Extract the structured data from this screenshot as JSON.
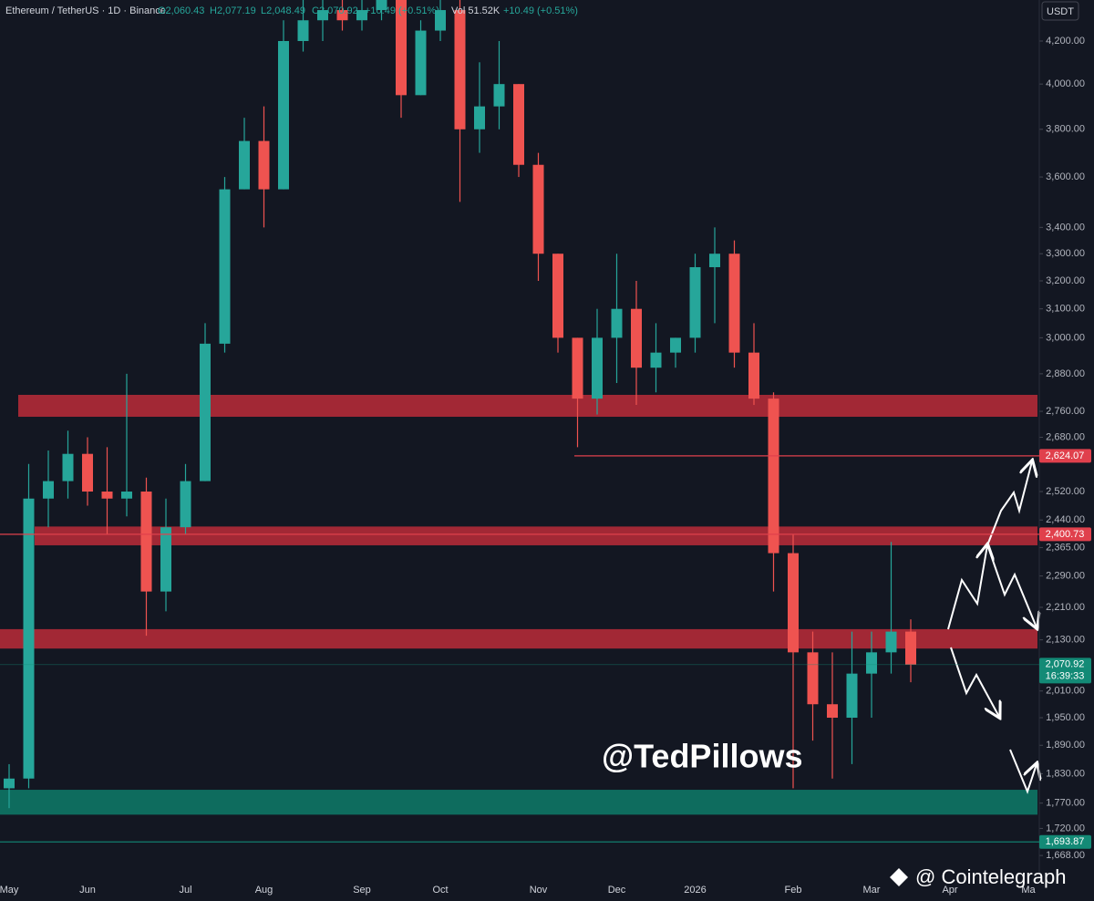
{
  "header": {
    "symbol": "Ethereum / TetherUS · 1D · Binance",
    "ohlc": [
      "O2,060.43",
      "H2,077.19",
      "L2,048.49",
      "C2,070.92"
    ],
    "change": "+10.49 (+0.51%)",
    "volume": "Vol 51.52K",
    "volume_change": "+10.49 (+0.51%)",
    "currency": "USDT"
  },
  "watermark": "@TedPillows",
  "source": "@ Cointelegraph",
  "chart_data": {
    "type": "candlestick",
    "log_scale": true,
    "grid": false,
    "up_color": "#26a69a",
    "down_color": "#ef5350",
    "categories": [
      "May",
      null,
      null,
      null,
      "Jun",
      null,
      null,
      null,
      null,
      "Jul",
      null,
      null,
      null,
      "Aug",
      null,
      null,
      null,
      null,
      "Sep",
      null,
      null,
      null,
      "Oct",
      null,
      null,
      null,
      null,
      "Nov",
      null,
      null,
      null,
      "Dec",
      null,
      null,
      null,
      "2026",
      null,
      null,
      null,
      null,
      "Feb",
      null,
      null,
      null,
      "Mar",
      null,
      null,
      null,
      "Apr",
      null,
      null,
      null,
      "Ma"
    ],
    "open": [
      1800,
      1820,
      2500,
      2550,
      2630,
      2520,
      2500,
      2520,
      2250,
      2420,
      2550,
      2980,
      3550,
      3750,
      3550,
      4200,
      4300,
      4350,
      4300,
      4350,
      4400,
      3950,
      4250,
      4350,
      3800,
      3900,
      4000,
      3650,
      3300,
      3000,
      2800,
      3000,
      3100,
      2900,
      2950,
      3000,
      3250,
      3300,
      2950,
      2800,
      2350,
      2100,
      1980,
      1950,
      2050,
      2100,
      2150,
      null,
      null,
      null,
      null,
      null,
      null
    ],
    "high": [
      1850,
      2600,
      2640,
      2700,
      2680,
      2650,
      2880,
      2560,
      2500,
      2600,
      3050,
      3600,
      3850,
      3900,
      4300,
      4400,
      4400,
      4400,
      4400,
      4400,
      4400,
      4300,
      4400,
      4400,
      4100,
      4200,
      4000,
      3700,
      3300,
      3000,
      3100,
      3300,
      3200,
      3050,
      3000,
      3300,
      3400,
      3350,
      3050,
      2820,
      2400,
      2150,
      2100,
      2150,
      2150,
      2380,
      2180,
      null,
      null,
      null,
      null,
      null,
      null
    ],
    "low": [
      1760,
      1800,
      2420,
      2500,
      2480,
      2400,
      2450,
      2140,
      2200,
      2400,
      2550,
      2950,
      3550,
      3400,
      3550,
      4150,
      4200,
      4250,
      4250,
      4300,
      3850,
      3950,
      4200,
      3500,
      3700,
      3800,
      3600,
      3200,
      2950,
      2650,
      2750,
      2850,
      2780,
      2820,
      2900,
      2950,
      3050,
      2900,
      2780,
      2250,
      1800,
      1900,
      1820,
      1850,
      1950,
      2050,
      2030,
      null,
      null,
      null,
      null,
      null,
      null
    ],
    "close": [
      1820,
      2500,
      2550,
      2630,
      2520,
      2500,
      2520,
      2250,
      2420,
      2550,
      2980,
      3550,
      3750,
      3550,
      4200,
      4300,
      4350,
      4300,
      4350,
      4400,
      3950,
      4250,
      4350,
      3800,
      3900,
      4000,
      3650,
      3300,
      3000,
      2800,
      3000,
      3100,
      2900,
      2950,
      3000,
      3250,
      3300,
      2950,
      2800,
      2350,
      2100,
      1980,
      1950,
      2050,
      2100,
      2150,
      2070.92,
      null,
      null,
      null,
      null,
      null,
      null
    ],
    "ylim": [
      1634,
      4400
    ],
    "yticks": [
      {
        "value": 4200,
        "label": "4,200.00"
      },
      {
        "value": 4000,
        "label": "4,000.00"
      },
      {
        "value": 3800,
        "label": "3,800.00"
      },
      {
        "value": 3600,
        "label": "3,600.00"
      },
      {
        "value": 3400,
        "label": "3,400.00"
      },
      {
        "value": 3300,
        "label": "3,300.00"
      },
      {
        "value": 3200,
        "label": "3,200.00"
      },
      {
        "value": 3100,
        "label": "3,100.00"
      },
      {
        "value": 3000,
        "label": "3,000.00"
      },
      {
        "value": 2880,
        "label": "2,880.00"
      },
      {
        "value": 2760,
        "label": "2,760.00"
      },
      {
        "value": 2680,
        "label": "2,680.00"
      },
      {
        "value": 2520,
        "label": "2,520.00"
      },
      {
        "value": 2440,
        "label": "2,440.00"
      },
      {
        "value": 2365,
        "label": "2,365.00"
      },
      {
        "value": 2290,
        "label": "2,290.00"
      },
      {
        "value": 2210,
        "label": "2,210.00"
      },
      {
        "value": 2130,
        "label": "2,130.00"
      },
      {
        "value": 2010,
        "label": "2,010.00"
      },
      {
        "value": 1950,
        "label": "1,950.00"
      },
      {
        "value": 1890,
        "label": "1,890.00"
      },
      {
        "value": 1830,
        "label": "1,830.00"
      },
      {
        "value": 1770,
        "label": "1,770.00"
      },
      {
        "value": 1720,
        "label": "1,720.00"
      },
      {
        "value": 1668,
        "label": "1,668.00"
      }
    ],
    "zones": [
      {
        "low": 2743,
        "high": 2812,
        "color": "#b32a37"
      },
      {
        "low": 2371,
        "high": 2422,
        "color": "#b32a37"
      },
      {
        "low": 2109,
        "high": 2156,
        "color": "#b32a37"
      },
      {
        "low": 1747,
        "high": 1797,
        "color": "#0e7565"
      }
    ],
    "price_tags": [
      {
        "value": 2624.07,
        "label": "2,624.07",
        "color": "#e0404c"
      },
      {
        "value": 2400.73,
        "label": "2,400.73",
        "color": "#e0404c"
      },
      {
        "value": 2070.92,
        "label": "2,070.92",
        "sub": "16:39:33",
        "color": "#138a76"
      },
      {
        "value": 1693.87,
        "label": "1,693.87",
        "color": "#138a76"
      }
    ]
  }
}
